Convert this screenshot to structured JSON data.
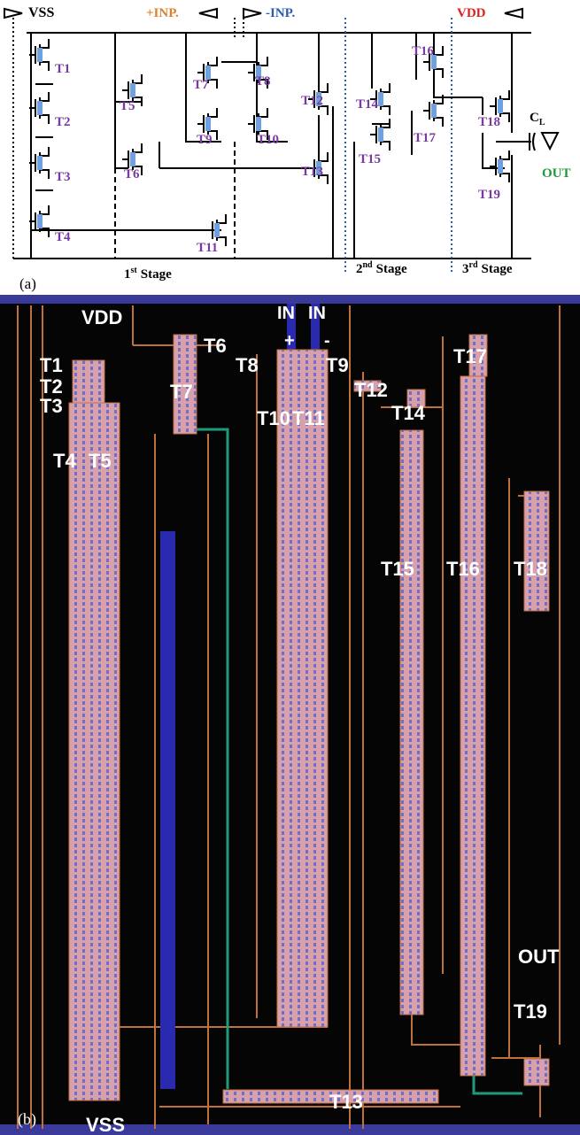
{
  "schematic": {
    "panel_label": "(a)",
    "rails": {
      "vss": "VSS",
      "inp_pos": "+INP.",
      "inp_neg": "-INP.",
      "vdd": "VDD"
    },
    "transistors": [
      "T1",
      "T2",
      "T3",
      "T4",
      "T5",
      "T6",
      "T7",
      "T8",
      "T9",
      "T10",
      "T11",
      "T12",
      "T13",
      "T14",
      "T15",
      "T16",
      "T17",
      "T18",
      "T19"
    ],
    "load": {
      "symbol": "C",
      "subscript": "L"
    },
    "output": "OUT",
    "stages": [
      {
        "number": "1",
        "suffix": "st",
        "name": "Stage"
      },
      {
        "number": "2",
        "suffix": "nd",
        "name": "Stage"
      },
      {
        "number": "3",
        "suffix": "rd",
        "name": "Stage"
      }
    ]
  },
  "layout": {
    "panel_label": "(b)",
    "supply_top": "VDD",
    "supply_bottom": "VSS",
    "inputs": [
      {
        "name": "IN",
        "sign": "+"
      },
      {
        "name": "IN",
        "sign": "-"
      }
    ],
    "transistors": [
      "T1",
      "T2",
      "T3",
      "T4",
      "T5",
      "T6",
      "T7",
      "T8",
      "T9",
      "T10",
      "T11",
      "T12",
      "T13",
      "T14",
      "T15",
      "T16",
      "T17",
      "T18",
      "T19"
    ],
    "output": "OUT"
  }
}
